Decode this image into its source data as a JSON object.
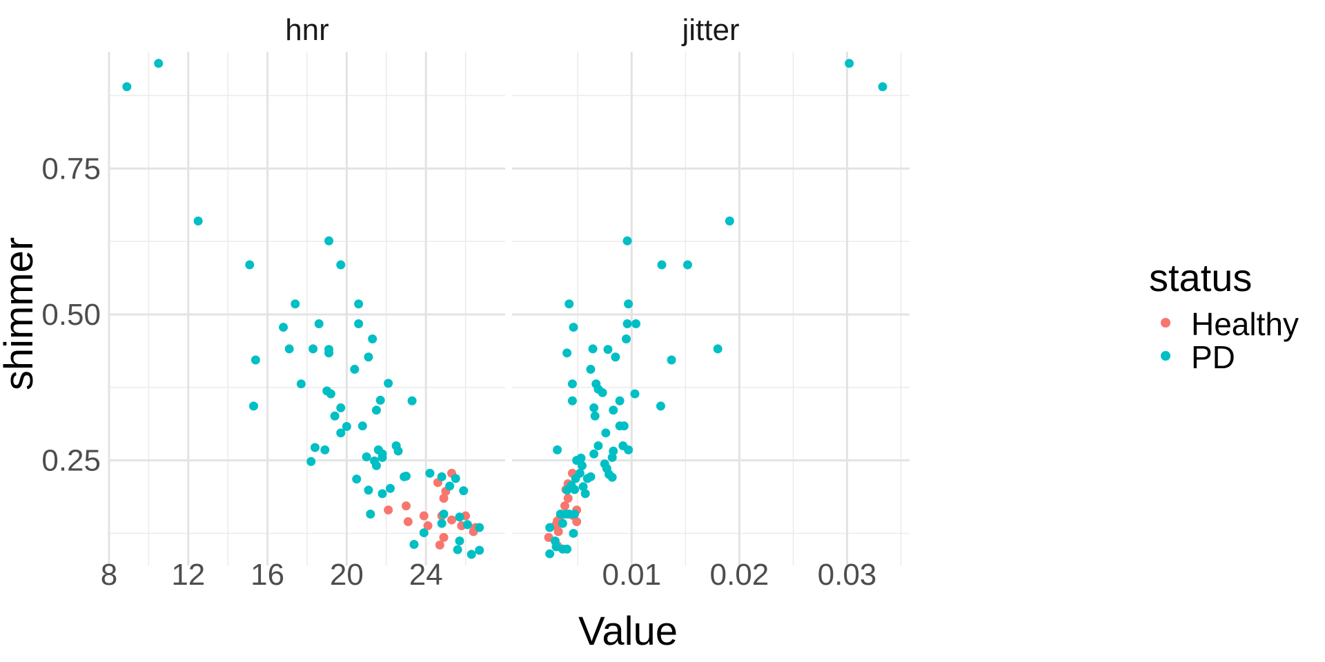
{
  "chart_data": {
    "type": "scatter",
    "facet_by": "variable",
    "xlabel": "Value",
    "ylabel": "shimmer",
    "grid": true,
    "theme": "minimal",
    "legend": {
      "title": "status",
      "position": "right",
      "entries": [
        {
          "name": "Healthy",
          "color": "#F8766D"
        },
        {
          "name": "PD",
          "color": "#00BFC4"
        }
      ]
    },
    "y": {
      "range": [
        0.07,
        0.95
      ],
      "major_ticks": [
        0.25,
        0.5,
        0.75
      ],
      "tick_labels": [
        "0.25",
        "0.50",
        "0.75"
      ],
      "minor_ticks": [
        0.125,
        0.375,
        0.625,
        0.875
      ]
    },
    "facets": [
      {
        "label": "hnr",
        "x_range": [
          8.0,
          28.0
        ],
        "x_major_ticks": [
          8,
          12,
          16,
          20,
          24
        ],
        "x_tick_labels": [
          "8",
          "12",
          "16",
          "20",
          "24"
        ],
        "x_minor_ticks": [
          10,
          14,
          18,
          22,
          26
        ],
        "series": [
          {
            "name": "Healthy",
            "points": [
              [
                22.1,
                0.165
              ],
              [
                23.0,
                0.172
              ],
              [
                23.1,
                0.145
              ],
              [
                23.9,
                0.155
              ],
              [
                24.1,
                0.138
              ],
              [
                24.6,
                0.212
              ],
              [
                24.8,
                0.155
              ],
              [
                24.9,
                0.185
              ],
              [
                25.0,
                0.197
              ],
              [
                25.3,
                0.228
              ],
              [
                25.3,
                0.148
              ],
              [
                24.9,
                0.118
              ],
              [
                24.7,
                0.105
              ],
              [
                25.8,
                0.138
              ],
              [
                26.0,
                0.155
              ],
              [
                26.4,
                0.128
              ],
              [
                26.5,
                0.135
              ]
            ]
          },
          {
            "name": "PD",
            "points": [
              [
                8.9,
                0.89
              ],
              [
                10.5,
                0.93
              ],
              [
                12.5,
                0.66
              ],
              [
                15.1,
                0.585
              ],
              [
                15.4,
                0.422
              ],
              [
                15.3,
                0.343
              ],
              [
                16.8,
                0.478
              ],
              [
                17.4,
                0.518
              ],
              [
                17.1,
                0.441
              ],
              [
                17.7,
                0.381
              ],
              [
                18.2,
                0.248
              ],
              [
                18.4,
                0.272
              ],
              [
                18.3,
                0.441
              ],
              [
                18.6,
                0.484
              ],
              [
                18.9,
                0.268
              ],
              [
                19.0,
                0.369
              ],
              [
                19.1,
                0.626
              ],
              [
                19.1,
                0.434
              ],
              [
                19.2,
                0.364
              ],
              [
                19.1,
                0.44
              ],
              [
                19.4,
                0.326
              ],
              [
                19.7,
                0.585
              ],
              [
                19.7,
                0.297
              ],
              [
                19.7,
                0.34
              ],
              [
                20.0,
                0.308
              ],
              [
                20.4,
                0.406
              ],
              [
                20.6,
                0.484
              ],
              [
                20.6,
                0.518
              ],
              [
                20.5,
                0.218
              ],
              [
                20.8,
                0.309
              ],
              [
                21.0,
                0.256
              ],
              [
                21.1,
                0.199
              ],
              [
                21.1,
                0.427
              ],
              [
                21.2,
                0.158
              ],
              [
                21.3,
                0.458
              ],
              [
                21.4,
                0.249
              ],
              [
                21.5,
                0.336
              ],
              [
                21.5,
                0.241
              ],
              [
                21.6,
                0.268
              ],
              [
                21.7,
                0.353
              ],
              [
                21.8,
                0.193
              ],
              [
                21.8,
                0.261
              ],
              [
                21.8,
                0.255
              ],
              [
                22.1,
                0.382
              ],
              [
                22.2,
                0.202
              ],
              [
                22.5,
                0.275
              ],
              [
                22.6,
                0.266
              ],
              [
                22.9,
                0.222
              ],
              [
                23.0,
                0.223
              ],
              [
                23.3,
                0.352
              ],
              [
                23.4,
                0.106
              ],
              [
                23.9,
                0.126
              ],
              [
                24.2,
                0.228
              ],
              [
                24.8,
                0.222
              ],
              [
                24.9,
                0.158
              ],
              [
                24.8,
                0.142
              ],
              [
                25.2,
                0.206
              ],
              [
                25.5,
                0.219
              ],
              [
                25.6,
                0.097
              ],
              [
                25.7,
                0.153
              ],
              [
                25.7,
                0.112
              ],
              [
                25.9,
                0.198
              ],
              [
                26.1,
                0.14
              ],
              [
                26.3,
                0.089
              ],
              [
                26.7,
                0.135
              ],
              [
                26.7,
                0.096
              ]
            ]
          }
        ]
      },
      {
        "label": "jitter",
        "x_range": [
          -0.0011,
          0.0358
        ],
        "x_major_ticks": [
          0.01,
          0.02,
          0.03
        ],
        "x_tick_labels": [
          "0.01",
          "0.02",
          "0.03"
        ],
        "x_minor_ticks": [
          0.005,
          0.015,
          0.025,
          0.035
        ],
        "series": [
          {
            "name": "Healthy",
            "points": [
              [
                0.0023,
                0.118
              ],
              [
                0.0029,
                0.138
              ],
              [
                0.0031,
                0.104
              ],
              [
                0.0031,
                0.146
              ],
              [
                0.0032,
                0.128
              ],
              [
                0.0033,
                0.142
              ],
              [
                0.0034,
                0.155
              ],
              [
                0.0038,
                0.172
              ],
              [
                0.0039,
                0.2
              ],
              [
                0.0041,
                0.185
              ],
              [
                0.0041,
                0.21
              ],
              [
                0.0045,
                0.228
              ],
              [
                0.0046,
                0.155
              ],
              [
                0.0049,
                0.165
              ],
              [
                0.0049,
                0.145
              ]
            ]
          },
          {
            "name": "PD",
            "points": [
              [
                0.0302,
                0.93
              ],
              [
                0.0333,
                0.89
              ],
              [
                0.0191,
                0.66
              ],
              [
                0.0128,
                0.585
              ],
              [
                0.0152,
                0.585
              ],
              [
                0.0096,
                0.626
              ],
              [
                0.0042,
                0.518
              ],
              [
                0.0097,
                0.518
              ],
              [
                0.0046,
                0.478
              ],
              [
                0.0096,
                0.484
              ],
              [
                0.0104,
                0.484
              ],
              [
                0.0095,
                0.458
              ],
              [
                0.018,
                0.441
              ],
              [
                0.004,
                0.434
              ],
              [
                0.0064,
                0.441
              ],
              [
                0.0078,
                0.44
              ],
              [
                0.0085,
                0.427
              ],
              [
                0.0137,
                0.422
              ],
              [
                0.0062,
                0.406
              ],
              [
                0.0067,
                0.381
              ],
              [
                0.0045,
                0.381
              ],
              [
                0.0069,
                0.372
              ],
              [
                0.0073,
                0.366
              ],
              [
                0.0103,
                0.364
              ],
              [
                0.0045,
                0.352
              ],
              [
                0.0089,
                0.352
              ],
              [
                0.0127,
                0.343
              ],
              [
                0.0065,
                0.34
              ],
              [
                0.0083,
                0.336
              ],
              [
                0.0066,
                0.326
              ],
              [
                0.0089,
                0.309
              ],
              [
                0.0093,
                0.309
              ],
              [
                0.0076,
                0.297
              ],
              [
                0.0092,
                0.275
              ],
              [
                0.0069,
                0.275
              ],
              [
                0.0031,
                0.268
              ],
              [
                0.0097,
                0.268
              ],
              [
                0.0083,
                0.266
              ],
              [
                0.0065,
                0.261
              ],
              [
                0.0053,
                0.254
              ],
              [
                0.0082,
                0.255
              ],
              [
                0.0049,
                0.25
              ],
              [
                0.0075,
                0.244
              ],
              [
                0.0054,
                0.241
              ],
              [
                0.0077,
                0.236
              ],
              [
                0.0052,
                0.228
              ],
              [
                0.0079,
                0.226
              ],
              [
                0.0062,
                0.222
              ],
              [
                0.0082,
                0.221
              ],
              [
                0.0048,
                0.219
              ],
              [
                0.0059,
                0.219
              ],
              [
                0.0044,
                0.207
              ],
              [
                0.0055,
                0.205
              ],
              [
                0.0047,
                0.2
              ],
              [
                0.004,
                0.199
              ],
              [
                0.0057,
                0.193
              ],
              [
                0.0039,
                0.158
              ],
              [
                0.0047,
                0.158
              ],
              [
                0.0042,
                0.158
              ],
              [
                0.0034,
                0.158
              ],
              [
                0.0036,
                0.142
              ],
              [
                0.0046,
                0.125
              ],
              [
                0.0024,
                0.135
              ],
              [
                0.0029,
                0.112
              ],
              [
                0.003,
                0.102
              ],
              [
                0.0036,
                0.098
              ],
              [
                0.004,
                0.098
              ],
              [
                0.0024,
                0.09
              ]
            ]
          }
        ]
      }
    ]
  }
}
